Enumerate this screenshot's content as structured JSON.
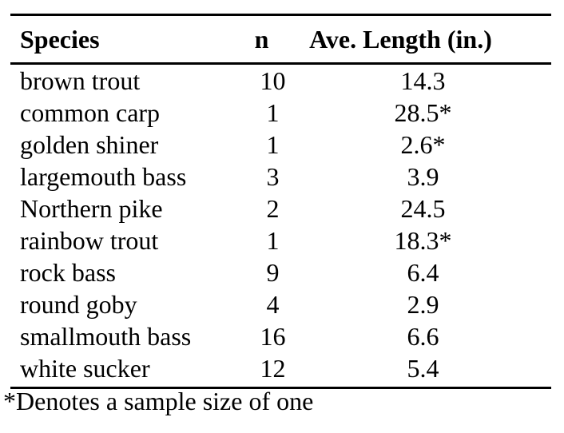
{
  "chart_data": {
    "type": "table",
    "columns": [
      "Species",
      "n",
      "Ave. Length (in.)"
    ],
    "rows": [
      [
        "brown trout",
        "10",
        "14.3"
      ],
      [
        "common carp",
        "1",
        "28.5*"
      ],
      [
        "golden shiner",
        "1",
        "2.6*"
      ],
      [
        "largemouth bass",
        "3",
        "3.9"
      ],
      [
        "Northern pike",
        "2",
        "24.5"
      ],
      [
        "rainbow trout",
        "1",
        "18.3*"
      ],
      [
        "rock bass",
        "9",
        "6.4"
      ],
      [
        "round goby",
        "4",
        "2.9"
      ],
      [
        "smallmouth bass",
        "16",
        "6.6"
      ],
      [
        "white sucker",
        "12",
        "5.4"
      ]
    ],
    "footnote": "*Denotes a sample size of one",
    "layout": {
      "grid": "horizontal rules only (top, below header, bottom)",
      "column_alignment": [
        "left",
        "center",
        "center"
      ]
    }
  },
  "colors": {
    "background": "#ffffff",
    "text": "#000000",
    "rule": "#000000"
  }
}
